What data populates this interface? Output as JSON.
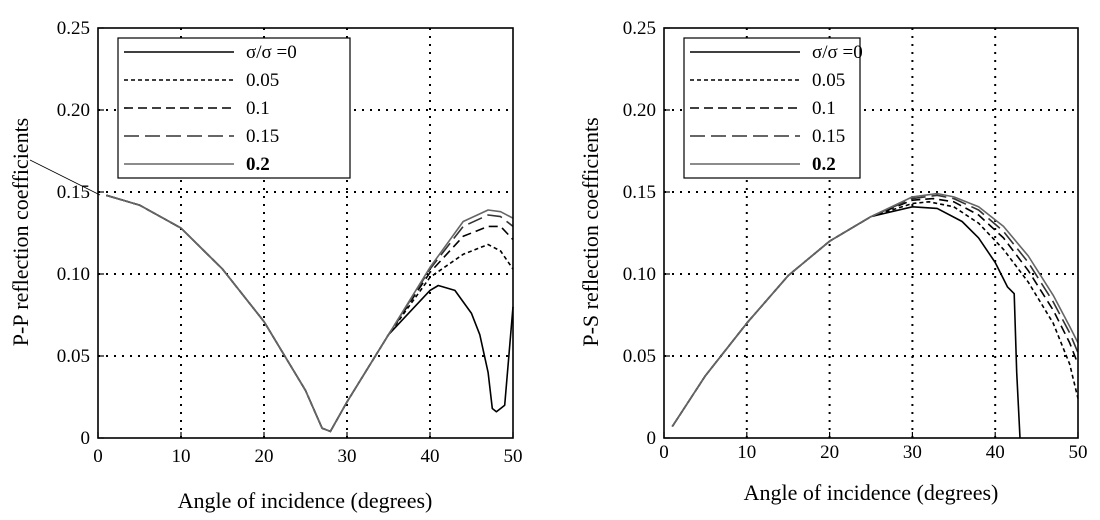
{
  "chart_data": [
    {
      "type": "line",
      "xlabel": "Angle of incidence (degrees)",
      "ylabel": "P-P reflection coefficients",
      "xlim": [
        0,
        50
      ],
      "ylim": [
        0,
        0.25
      ],
      "xticks": [
        "0",
        "10",
        "20",
        "30",
        "40",
        "50"
      ],
      "yticks": [
        "0",
        "0.05",
        "0.10",
        "0.15",
        "0.20",
        "0.25"
      ],
      "grid": "dotted",
      "legend_position": "top-left",
      "series": [
        {
          "name": "σ/σ =0",
          "dash": "solid",
          "color": "#000000",
          "x": [
            1,
            5,
            10,
            15,
            20,
            25,
            27,
            28,
            30,
            35,
            40,
            41,
            43,
            45,
            46,
            47,
            47.5,
            48,
            48.5,
            49,
            50
          ],
          "y": [
            0.148,
            0.142,
            0.128,
            0.103,
            0.071,
            0.029,
            0.006,
            0.004,
            0.022,
            0.063,
            0.09,
            0.093,
            0.09,
            0.076,
            0.063,
            0.04,
            0.018,
            0.016,
            0.018,
            0.02,
            0.08
          ]
        },
        {
          "name": "0.05",
          "dash": "short",
          "color": "#000000",
          "x": [
            1,
            5,
            10,
            15,
            20,
            25,
            27,
            28,
            30,
            35,
            40,
            44,
            47,
            48.5,
            50
          ],
          "y": [
            0.148,
            0.142,
            0.128,
            0.103,
            0.071,
            0.029,
            0.006,
            0.004,
            0.022,
            0.063,
            0.098,
            0.112,
            0.118,
            0.114,
            0.103
          ]
        },
        {
          "name": "0.1",
          "dash": "medium",
          "color": "#000000",
          "x": [
            1,
            5,
            10,
            15,
            20,
            25,
            27,
            28,
            30,
            35,
            40,
            44,
            47,
            48.5,
            50
          ],
          "y": [
            0.148,
            0.142,
            0.128,
            0.103,
            0.071,
            0.029,
            0.006,
            0.004,
            0.022,
            0.063,
            0.101,
            0.123,
            0.129,
            0.129,
            0.121
          ]
        },
        {
          "name": "0.15",
          "dash": "long",
          "color": "#333333",
          "x": [
            1,
            5,
            10,
            15,
            20,
            25,
            27,
            28,
            30,
            35,
            40,
            44,
            47,
            48.5,
            50
          ],
          "y": [
            0.148,
            0.142,
            0.128,
            0.103,
            0.071,
            0.029,
            0.006,
            0.004,
            0.022,
            0.063,
            0.103,
            0.129,
            0.136,
            0.135,
            0.129
          ]
        },
        {
          "name": "0.2",
          "dash": "solid",
          "color": "#666666",
          "x": [
            1,
            5,
            10,
            15,
            20,
            25,
            27,
            28,
            30,
            35,
            40,
            44,
            47,
            48.5,
            50
          ],
          "y": [
            0.148,
            0.142,
            0.128,
            0.103,
            0.071,
            0.029,
            0.006,
            0.004,
            0.022,
            0.063,
            0.104,
            0.132,
            0.139,
            0.138,
            0.134
          ]
        }
      ]
    },
    {
      "type": "line",
      "xlabel": "Angle of incidence (degrees)",
      "ylabel": "P-S reflection coefficients",
      "xlim": [
        0,
        50
      ],
      "ylim": [
        0,
        0.25
      ],
      "xticks": [
        "0",
        "10",
        "20",
        "30",
        "40",
        "50"
      ],
      "yticks": [
        "0",
        "0.05",
        "0.10",
        "0.15",
        "0.20",
        "0.25"
      ],
      "grid": "dotted",
      "legend_position": "top-left",
      "series": [
        {
          "name": "σ/σ =0",
          "dash": "solid",
          "color": "#000000",
          "x": [
            1,
            5,
            10,
            15,
            20,
            25,
            30,
            33,
            36,
            38,
            40,
            41.5,
            42.3,
            42.6,
            43
          ],
          "y": [
            0.007,
            0.038,
            0.07,
            0.099,
            0.12,
            0.135,
            0.141,
            0.14,
            0.132,
            0.122,
            0.107,
            0.092,
            0.088,
            0.04,
            0.0
          ]
        },
        {
          "name": "0.05",
          "dash": "short",
          "color": "#000000",
          "x": [
            1,
            5,
            10,
            15,
            20,
            25,
            30,
            32,
            35,
            38,
            41,
            44,
            47,
            49,
            50
          ],
          "y": [
            0.007,
            0.038,
            0.07,
            0.099,
            0.12,
            0.135,
            0.143,
            0.144,
            0.141,
            0.131,
            0.115,
            0.095,
            0.07,
            0.045,
            0.024
          ]
        },
        {
          "name": "0.1",
          "dash": "medium",
          "color": "#000000",
          "x": [
            1,
            5,
            10,
            15,
            20,
            25,
            30,
            32.5,
            35,
            38,
            41,
            44,
            47,
            49,
            50
          ],
          "y": [
            0.007,
            0.038,
            0.07,
            0.099,
            0.12,
            0.135,
            0.145,
            0.146,
            0.144,
            0.136,
            0.122,
            0.102,
            0.078,
            0.058,
            0.045
          ]
        },
        {
          "name": "0.15",
          "dash": "long",
          "color": "#333333",
          "x": [
            1,
            5,
            10,
            15,
            20,
            25,
            30,
            33,
            35,
            38,
            41,
            44,
            47,
            49,
            50
          ],
          "y": [
            0.007,
            0.038,
            0.07,
            0.099,
            0.12,
            0.135,
            0.146,
            0.148,
            0.146,
            0.139,
            0.126,
            0.107,
            0.083,
            0.064,
            0.052
          ]
        },
        {
          "name": "0.2",
          "dash": "solid",
          "color": "#666666",
          "x": [
            1,
            5,
            10,
            15,
            20,
            25,
            30,
            33,
            35,
            38,
            41,
            44,
            47,
            49,
            50
          ],
          "y": [
            0.007,
            0.038,
            0.07,
            0.099,
            0.12,
            0.135,
            0.147,
            0.149,
            0.147,
            0.141,
            0.129,
            0.111,
            0.087,
            0.068,
            0.058
          ]
        }
      ]
    }
  ]
}
